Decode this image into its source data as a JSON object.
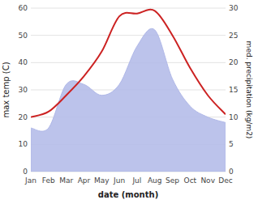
{
  "chart_data": {
    "type": "line",
    "categories": [
      "Jan",
      "Feb",
      "Mar",
      "Apr",
      "May",
      "Jun",
      "Jul",
      "Aug",
      "Sep",
      "Oct",
      "Nov",
      "Dec"
    ],
    "xlabel": "date (month)",
    "ylabel": "max temp (C)",
    "y2label": "med. precipitation (kg/m2)",
    "series": [
      {
        "type": "area",
        "axis": "y2",
        "color": "#b0b8e8",
        "values": [
          8,
          8,
          16,
          16,
          14,
          16,
          23,
          26,
          17,
          12,
          10,
          9
        ]
      },
      {
        "type": "line",
        "color": "#cc2222",
        "values": [
          20,
          22,
          28,
          35,
          44,
          57,
          58,
          59,
          50,
          38,
          28,
          21
        ]
      }
    ],
    "ylim": [
      0,
      60
    ],
    "yticks": [
      0,
      10,
      20,
      30,
      40,
      50,
      60
    ],
    "y2lim": [
      0,
      30
    ],
    "y2ticks": [
      0,
      5,
      10,
      15,
      20,
      25,
      30
    ],
    "grid": true
  }
}
